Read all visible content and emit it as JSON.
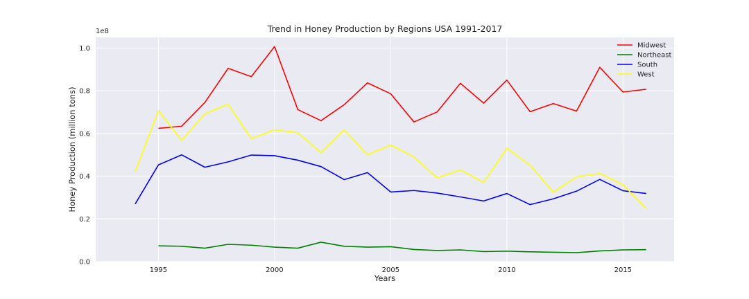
{
  "chart_data": {
    "type": "line",
    "title": "Trend in Honey Production by Regions USA 1991-2017",
    "xlabel": "Years",
    "ylabel": "Honey Production (million tons)",
    "y_offset_label": "1e8",
    "xlim": [
      1992.3,
      2017.2
    ],
    "ylim": [
      0,
      1.05
    ],
    "xticks": [
      1995,
      2000,
      2005,
      2010,
      2015
    ],
    "yticks": [
      "0.0",
      "0.2",
      "0.4",
      "0.6",
      "0.8",
      "1.0"
    ],
    "grid": true,
    "legend_position": "top-right",
    "x": [
      1994,
      1995,
      1996,
      1997,
      1998,
      1999,
      2000,
      2001,
      2002,
      2003,
      2004,
      2005,
      2006,
      2007,
      2008,
      2009,
      2010,
      2011,
      2012,
      2013,
      2014,
      2015,
      2016
    ],
    "series": [
      {
        "name": "Midwest",
        "color": "#ff0000",
        "values": [
          null,
          0.624,
          0.634,
          0.745,
          0.905,
          0.866,
          1.007,
          0.712,
          0.66,
          0.735,
          0.837,
          0.786,
          0.654,
          0.701,
          0.835,
          0.742,
          0.85,
          0.702,
          0.74,
          0.705,
          0.91,
          0.794,
          0.807
        ]
      },
      {
        "name": "Northeast",
        "color": "#008000",
        "values": [
          null,
          0.074,
          0.072,
          0.063,
          0.081,
          0.077,
          0.068,
          0.063,
          0.091,
          0.072,
          0.068,
          0.07,
          0.057,
          0.052,
          0.055,
          0.047,
          0.049,
          0.046,
          0.044,
          0.042,
          0.05,
          0.055,
          0.056
        ]
      },
      {
        "name": "South",
        "color": "#0000ff",
        "values": [
          0.27,
          0.453,
          0.5,
          0.442,
          0.467,
          0.499,
          0.496,
          0.475,
          0.445,
          0.384,
          0.417,
          0.326,
          0.333,
          0.321,
          0.303,
          0.284,
          0.319,
          0.267,
          0.294,
          0.33,
          0.385,
          0.332,
          0.319
        ]
      },
      {
        "name": "West",
        "color": "#ffff00",
        "values": [
          0.42,
          0.706,
          0.568,
          0.692,
          0.737,
          0.576,
          0.617,
          0.603,
          0.51,
          0.617,
          0.5,
          0.546,
          0.49,
          0.392,
          0.43,
          0.37,
          0.531,
          0.452,
          0.325,
          0.397,
          0.413,
          0.36,
          0.249
        ]
      }
    ]
  }
}
